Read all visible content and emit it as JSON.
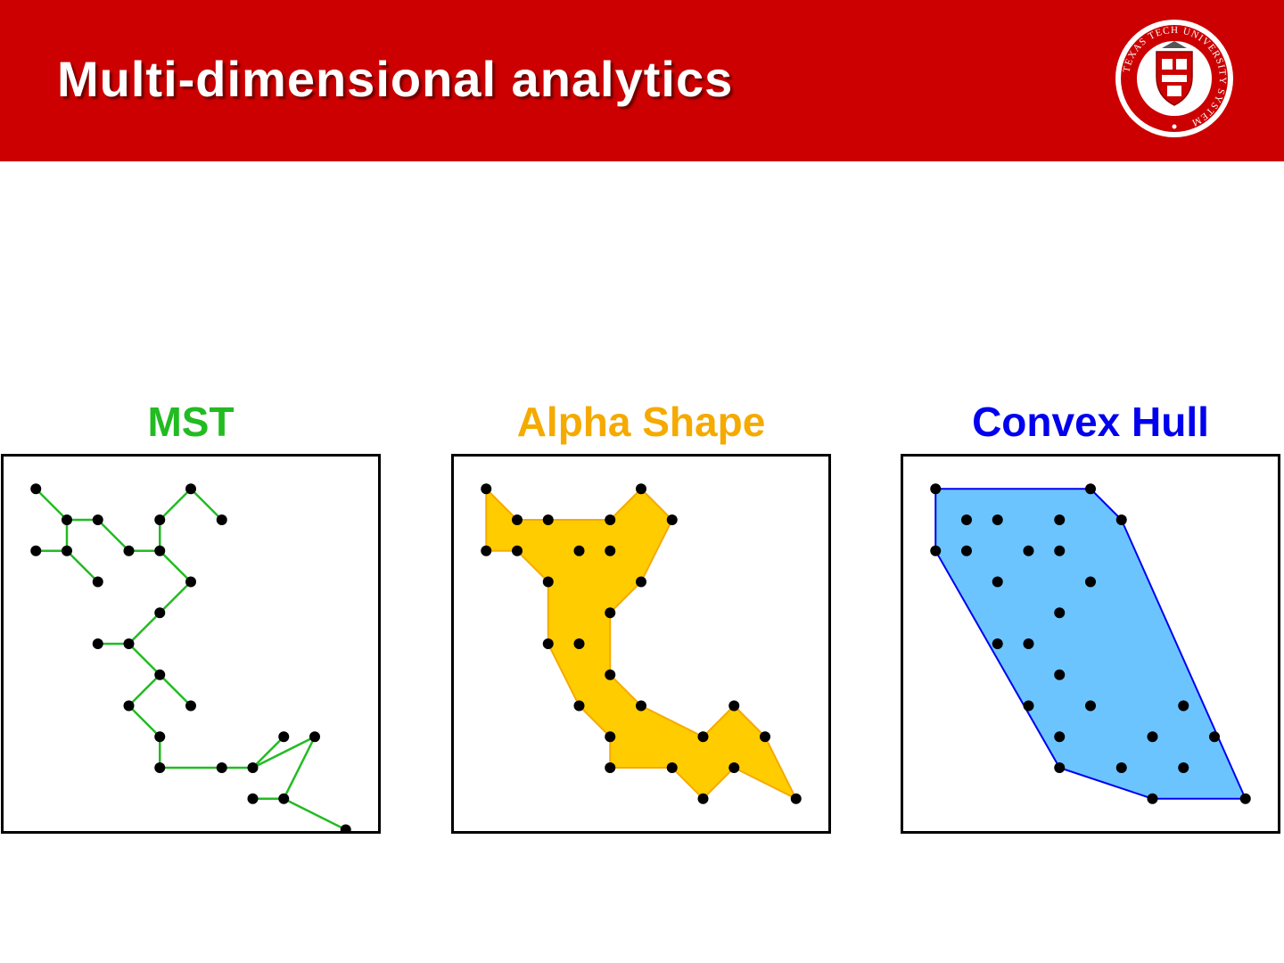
{
  "header": {
    "title": "Multi-dimensional analytics",
    "background_color": "#cc0000",
    "logo": {
      "ring_text": "TEXAS TECH UNIVERSITY SYSTEM",
      "icon": "university-seal"
    }
  },
  "panels": [
    {
      "id": "mst",
      "title": "MST",
      "color": "#22bb22",
      "type": "tree",
      "points": [
        [
          1,
          1
        ],
        [
          2,
          2
        ],
        [
          3,
          2
        ],
        [
          1,
          3
        ],
        [
          2,
          3
        ],
        [
          3,
          4
        ],
        [
          4,
          3
        ],
        [
          5,
          3
        ],
        [
          6,
          1
        ],
        [
          5,
          2
        ],
        [
          7,
          2
        ],
        [
          6,
          4
        ],
        [
          5,
          5
        ],
        [
          3,
          6
        ],
        [
          4,
          6
        ],
        [
          5,
          7
        ],
        [
          4,
          8
        ],
        [
          6,
          8
        ],
        [
          5,
          9
        ],
        [
          5,
          10
        ],
        [
          7,
          10
        ],
        [
          9,
          9
        ],
        [
          8,
          10
        ],
        [
          10,
          9
        ],
        [
          9,
          11
        ],
        [
          8,
          11
        ],
        [
          11,
          12
        ]
      ],
      "edges": [
        [
          0,
          1
        ],
        [
          1,
          2
        ],
        [
          1,
          4
        ],
        [
          3,
          4
        ],
        [
          4,
          5
        ],
        [
          2,
          6
        ],
        [
          6,
          7
        ],
        [
          7,
          9
        ],
        [
          9,
          8
        ],
        [
          8,
          10
        ],
        [
          7,
          11
        ],
        [
          11,
          12
        ],
        [
          12,
          14
        ],
        [
          13,
          14
        ],
        [
          14,
          15
        ],
        [
          15,
          17
        ],
        [
          15,
          16
        ],
        [
          16,
          18
        ],
        [
          18,
          19
        ],
        [
          19,
          20
        ],
        [
          20,
          22
        ],
        [
          22,
          21
        ],
        [
          22,
          23
        ],
        [
          23,
          24
        ],
        [
          24,
          25
        ],
        [
          24,
          26
        ]
      ]
    },
    {
      "id": "alpha",
      "title": "Alpha Shape",
      "color": "#f5aa00",
      "fill": "#ffcc00",
      "type": "polygon",
      "points": [
        [
          1,
          1
        ],
        [
          2,
          2
        ],
        [
          3,
          2
        ],
        [
          1,
          3
        ],
        [
          2,
          3
        ],
        [
          3,
          4
        ],
        [
          5,
          2
        ],
        [
          6,
          1
        ],
        [
          7,
          2
        ],
        [
          4,
          3
        ],
        [
          5,
          3
        ],
        [
          6,
          4
        ],
        [
          5,
          5
        ],
        [
          3,
          6
        ],
        [
          4,
          6
        ],
        [
          5,
          7
        ],
        [
          4,
          8
        ],
        [
          6,
          8
        ],
        [
          9,
          8
        ],
        [
          5,
          9
        ],
        [
          8,
          9
        ],
        [
          10,
          9
        ],
        [
          5,
          10
        ],
        [
          7,
          10
        ],
        [
          9,
          10
        ],
        [
          8,
          11
        ],
        [
          11,
          11
        ]
      ],
      "polygon": [
        [
          1,
          1
        ],
        [
          2,
          2
        ],
        [
          5,
          2
        ],
        [
          6,
          1
        ],
        [
          7,
          2
        ],
        [
          6,
          4
        ],
        [
          5,
          5
        ],
        [
          5,
          7
        ],
        [
          6,
          8
        ],
        [
          8,
          9
        ],
        [
          9,
          8
        ],
        [
          10,
          9
        ],
        [
          11,
          11
        ],
        [
          9,
          10
        ],
        [
          8,
          11
        ],
        [
          7,
          10
        ],
        [
          5,
          10
        ],
        [
          5,
          9
        ],
        [
          4,
          8
        ],
        [
          3,
          6
        ],
        [
          3,
          4
        ],
        [
          2,
          3
        ],
        [
          1,
          3
        ]
      ]
    },
    {
      "id": "hull",
      "title": "Convex Hull",
      "color": "#0000ee",
      "fill": "#6cc4ff",
      "type": "polygon",
      "points": [
        [
          1,
          1
        ],
        [
          6,
          1
        ],
        [
          2,
          2
        ],
        [
          3,
          2
        ],
        [
          5,
          2
        ],
        [
          7,
          2
        ],
        [
          1,
          3
        ],
        [
          2,
          3
        ],
        [
          4,
          3
        ],
        [
          5,
          3
        ],
        [
          3,
          4
        ],
        [
          6,
          4
        ],
        [
          5,
          5
        ],
        [
          3,
          6
        ],
        [
          4,
          6
        ],
        [
          5,
          7
        ],
        [
          4,
          8
        ],
        [
          6,
          8
        ],
        [
          9,
          8
        ],
        [
          5,
          9
        ],
        [
          8,
          9
        ],
        [
          10,
          9
        ],
        [
          5,
          10
        ],
        [
          7,
          10
        ],
        [
          9,
          10
        ],
        [
          8,
          11
        ],
        [
          11,
          11
        ]
      ],
      "polygon": [
        [
          1,
          1
        ],
        [
          6,
          1
        ],
        [
          7,
          2
        ],
        [
          11,
          11
        ],
        [
          8,
          11
        ],
        [
          5,
          10
        ],
        [
          1,
          3
        ]
      ]
    }
  ]
}
